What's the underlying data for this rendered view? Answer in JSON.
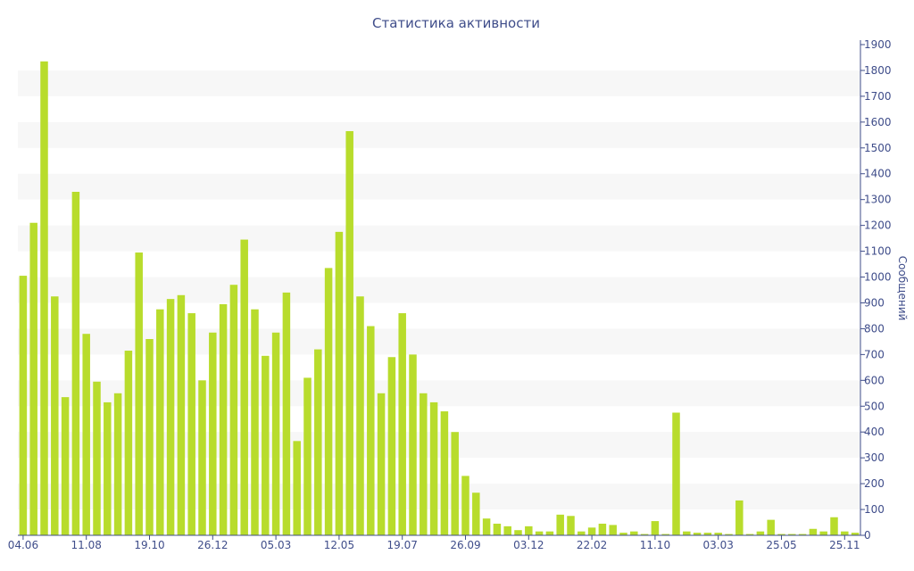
{
  "chart_data": {
    "type": "bar",
    "title": "Статистика активности",
    "ylabel": "Сообщений",
    "xlabel": "",
    "ylim": [
      0,
      1900
    ],
    "yticks": [
      0,
      100,
      200,
      300,
      400,
      500,
      600,
      700,
      800,
      900,
      1000,
      1100,
      1200,
      1300,
      1400,
      1500,
      1600,
      1700,
      1800,
      1900
    ],
    "y_axis_position": "right",
    "grid": "alternating horizontal bands",
    "x_tick_labels": [
      {
        "label": "04.06",
        "index": 0
      },
      {
        "label": "11.08",
        "index": 6
      },
      {
        "label": "19.10",
        "index": 12
      },
      {
        "label": "26.12",
        "index": 18
      },
      {
        "label": "05.03",
        "index": 24
      },
      {
        "label": "12.05",
        "index": 30
      },
      {
        "label": "19.07",
        "index": 36
      },
      {
        "label": "26.09",
        "index": 42
      },
      {
        "label": "03.12",
        "index": 48
      },
      {
        "label": "22.02",
        "index": 54
      },
      {
        "label": "11.10",
        "index": 60
      },
      {
        "label": "03.03",
        "index": 66
      },
      {
        "label": "25.05",
        "index": 72
      },
      {
        "label": "25.11",
        "index": 78
      }
    ],
    "values": [
      1005,
      1210,
      1835,
      925,
      535,
      1330,
      780,
      595,
      515,
      550,
      715,
      1095,
      760,
      875,
      915,
      930,
      860,
      600,
      785,
      895,
      970,
      1145,
      875,
      695,
      785,
      940,
      365,
      610,
      720,
      1035,
      1175,
      1565,
      925,
      810,
      550,
      690,
      860,
      700,
      550,
      515,
      480,
      400,
      230,
      165,
      65,
      45,
      35,
      20,
      35,
      15,
      15,
      80,
      75,
      15,
      30,
      45,
      40,
      10,
      15,
      5,
      55,
      5,
      475,
      15,
      10,
      10,
      10,
      5,
      135,
      5,
      15,
      60,
      5,
      5,
      5,
      25,
      15,
      70,
      15,
      10
    ],
    "bar_color": "#b8dc2c",
    "band_color": "#f7f7f7",
    "axis_color": "#3f4d8a"
  }
}
